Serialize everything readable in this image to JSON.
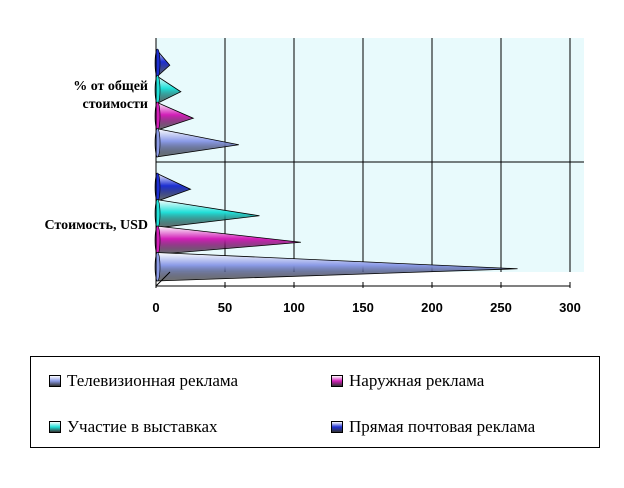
{
  "chart_data": {
    "type": "bar",
    "orientation": "horizontal",
    "style": "3d-cone",
    "categories": [
      "% от общей стоимости",
      "Стоимость, USD"
    ],
    "category_lines": [
      [
        "% от общей",
        "стоимости"
      ],
      [
        "Стоимость, USD"
      ]
    ],
    "series": [
      {
        "name": "Телевизионная реклама",
        "values": [
          60,
          262
        ],
        "color": "#8a9ae6"
      },
      {
        "name": "Наружная реклама",
        "values": [
          27,
          105
        ],
        "color": "#d21fb8"
      },
      {
        "name": "Участие в выставках",
        "values": [
          18,
          75
        ],
        "color": "#21e0d8"
      },
      {
        "name": "Прямая почтовая реклама",
        "values": [
          10,
          25
        ],
        "color": "#1d2fd2"
      }
    ],
    "xlim": [
      0,
      300
    ],
    "x_ticks": [
      "0",
      "50",
      "100",
      "150",
      "200",
      "250",
      "300"
    ],
    "grid": true,
    "legend_position": "bottom",
    "plot_background": "#e8fafc"
  }
}
